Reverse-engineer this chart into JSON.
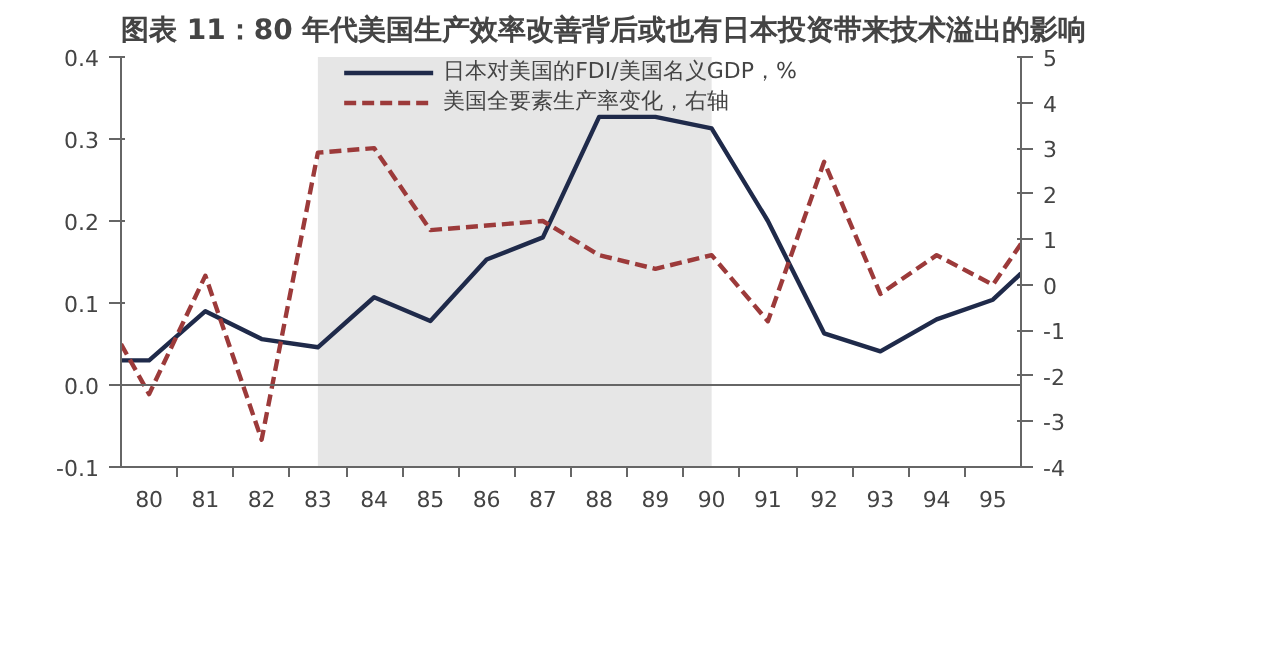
{
  "chart_data": {
    "type": "line",
    "title": "图表 11：80 年代美国生产效率改善背后或也有日本投资带来技术溢出的影响",
    "xlim": [
      79.5,
      95.5
    ],
    "xticks": [
      80,
      81,
      82,
      83,
      84,
      85,
      86,
      87,
      88,
      89,
      90,
      91,
      92,
      93,
      94,
      95
    ],
    "ylim": [
      -0.1,
      0.4
    ],
    "yticks": [
      {
        "value": -0.1,
        "label": "-0.1"
      },
      {
        "value": 0,
        "label": "0.0"
      },
      {
        "value": 0.1,
        "label": "0.1"
      },
      {
        "value": 0.2,
        "label": "0.2"
      },
      {
        "value": 0.3,
        "label": "0.3"
      },
      {
        "value": 0.4,
        "label": "0.4"
      }
    ],
    "y2lim": [
      -4,
      5
    ],
    "y2ticks": [
      -4,
      -3,
      -2,
      -1,
      0,
      1,
      2,
      3,
      4,
      5
    ],
    "grid": false,
    "legend": "top",
    "marker": "none",
    "ref_lines": [
      {
        "axis": "y",
        "value": 0,
        "color": "#666666"
      }
    ],
    "bands": [
      {
        "axis": "x",
        "from": 83,
        "to": 90,
        "color": "#e6e6e6"
      }
    ],
    "series": [
      {
        "name": "日本对美国的FDI/美国名义GDP，%",
        "color": "#1f2a4a",
        "line_style": "solid",
        "x": [
          79.5,
          80,
          81,
          82,
          83,
          84,
          85,
          86,
          87,
          88,
          89,
          90,
          91,
          92,
          93,
          94,
          95,
          95.5
        ],
        "values": [
          0.03,
          0.03,
          0.09,
          0.056,
          0.046,
          0.107,
          0.078,
          0.153,
          0.18,
          0.327,
          0.327,
          0.313,
          0.2,
          0.063,
          0.041,
          0.08,
          0.104,
          0.136
        ]
      },
      {
        "name": "美国全要素生产率变化，右轴",
        "color": "#9c3a3a",
        "line_style": "dashed",
        "axis": "y2",
        "x": [
          79.5,
          80,
          81,
          82,
          83,
          84,
          85,
          86,
          87,
          88,
          89,
          90,
          91,
          92,
          93,
          94,
          95,
          95.5
        ],
        "values": [
          -1.3,
          -2.4,
          0.2,
          -3.4,
          2.9,
          3.0,
          1.2,
          1.3,
          1.4,
          0.65,
          0.35,
          0.65,
          -0.8,
          2.7,
          -0.2,
          0.65,
          0.0,
          0.9
        ]
      }
    ]
  }
}
